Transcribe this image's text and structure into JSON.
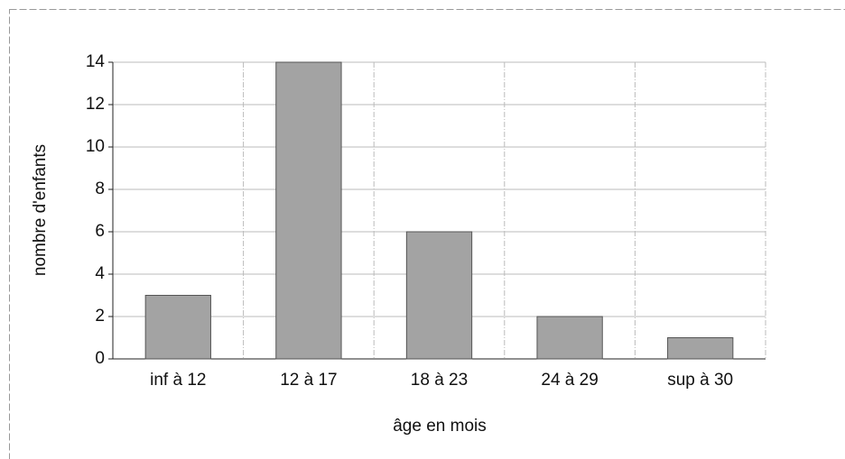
{
  "chart_data": {
    "type": "bar",
    "categories": [
      "inf à 12",
      "12 à 17",
      "18 à 23",
      "24 à 29",
      "sup à 30"
    ],
    "values": [
      3,
      14,
      6,
      2,
      1
    ],
    "color": "#a3a3a3",
    "xlabel": "âge en mois",
    "ylabel": "nombre d'enfants",
    "ylim": [
      0,
      14
    ],
    "yticks": [
      0,
      2,
      4,
      6,
      8,
      10,
      12,
      14
    ],
    "grid": true
  }
}
